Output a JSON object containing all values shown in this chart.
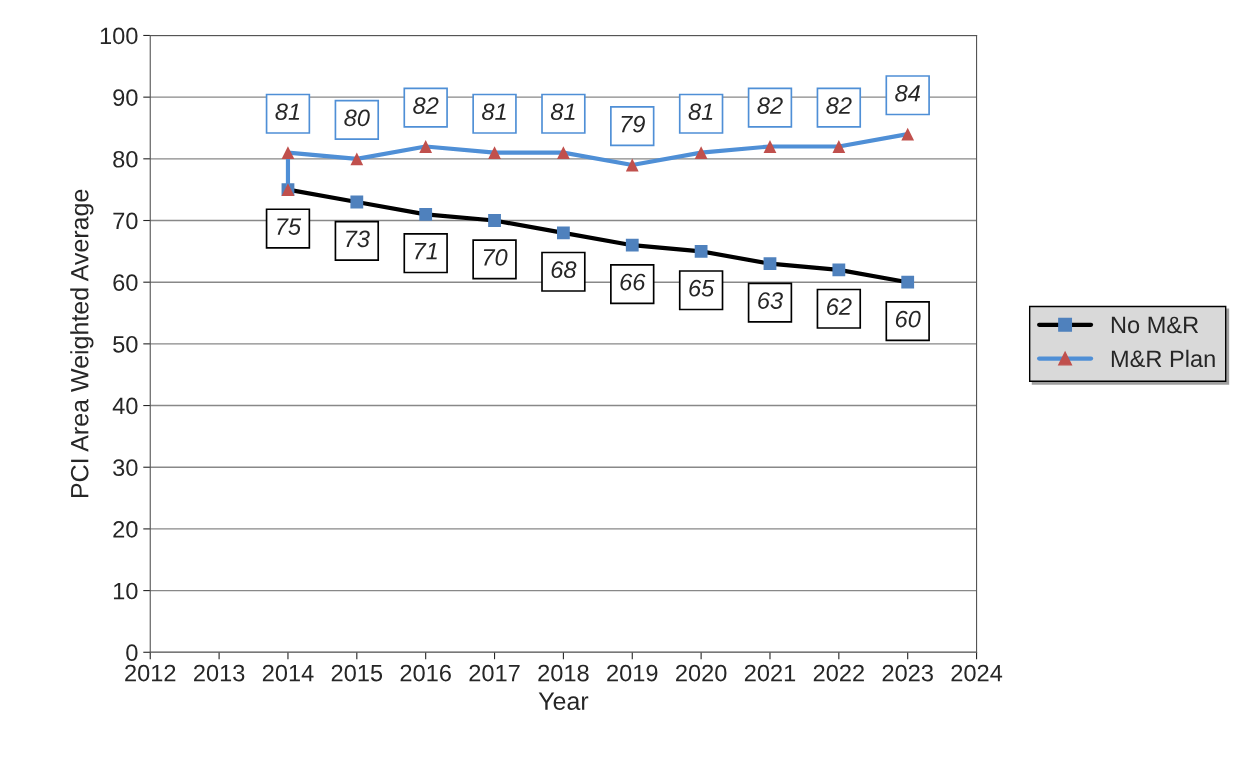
{
  "chart_data": {
    "type": "line",
    "xlabel": "Year",
    "ylabel": "PCI Area Weighted Average",
    "xlim": [
      2012,
      2024
    ],
    "xticks": [
      2012,
      2013,
      2014,
      2015,
      2016,
      2017,
      2018,
      2019,
      2020,
      2021,
      2022,
      2023,
      2024
    ],
    "ylim": [
      0,
      100
    ],
    "yticks": [
      0,
      10,
      20,
      30,
      40,
      50,
      60,
      70,
      80,
      90,
      100
    ],
    "grid": "y",
    "legend": "right",
    "line_style": "solid",
    "series": [
      {
        "name": "No M&R",
        "color": "#000000",
        "marker": "square",
        "colors": [
          "#4f81bd",
          "#4f81bd",
          "#4f81bd",
          "#4f81bd",
          "#4f81bd",
          "#4f81bd",
          "#4f81bd",
          "#4f81bd",
          "#4f81bd",
          "#4f81bd"
        ],
        "x": [
          2014,
          2015,
          2016,
          2017,
          2018,
          2019,
          2020,
          2021,
          2022,
          2023
        ],
        "values": [
          75,
          73,
          71,
          70,
          68,
          66,
          65,
          63,
          62,
          60
        ],
        "value_labels": [
          "75",
          "73",
          "71",
          "70",
          "68",
          "66",
          "65",
          "63",
          "62",
          "60"
        ]
      },
      {
        "name": "M&R Plan",
        "color": "#4f8fd6",
        "marker": "triangle",
        "colors": [
          "#c0504d",
          "#c0504d",
          "#c0504d",
          "#c0504d",
          "#c0504d",
          "#c0504d",
          "#c0504d",
          "#c0504d",
          "#c0504d",
          "#c0504d",
          "#c0504d"
        ],
        "x": [
          2014,
          2014,
          2015,
          2016,
          2017,
          2018,
          2019,
          2020,
          2021,
          2022,
          2023
        ],
        "values": [
          75,
          81,
          80,
          82,
          81,
          81,
          79,
          81,
          82,
          82,
          84
        ],
        "value_labels": [
          null,
          "81",
          "80",
          "82",
          "81",
          "81",
          "79",
          "81",
          "82",
          "82",
          "84"
        ]
      }
    ]
  }
}
